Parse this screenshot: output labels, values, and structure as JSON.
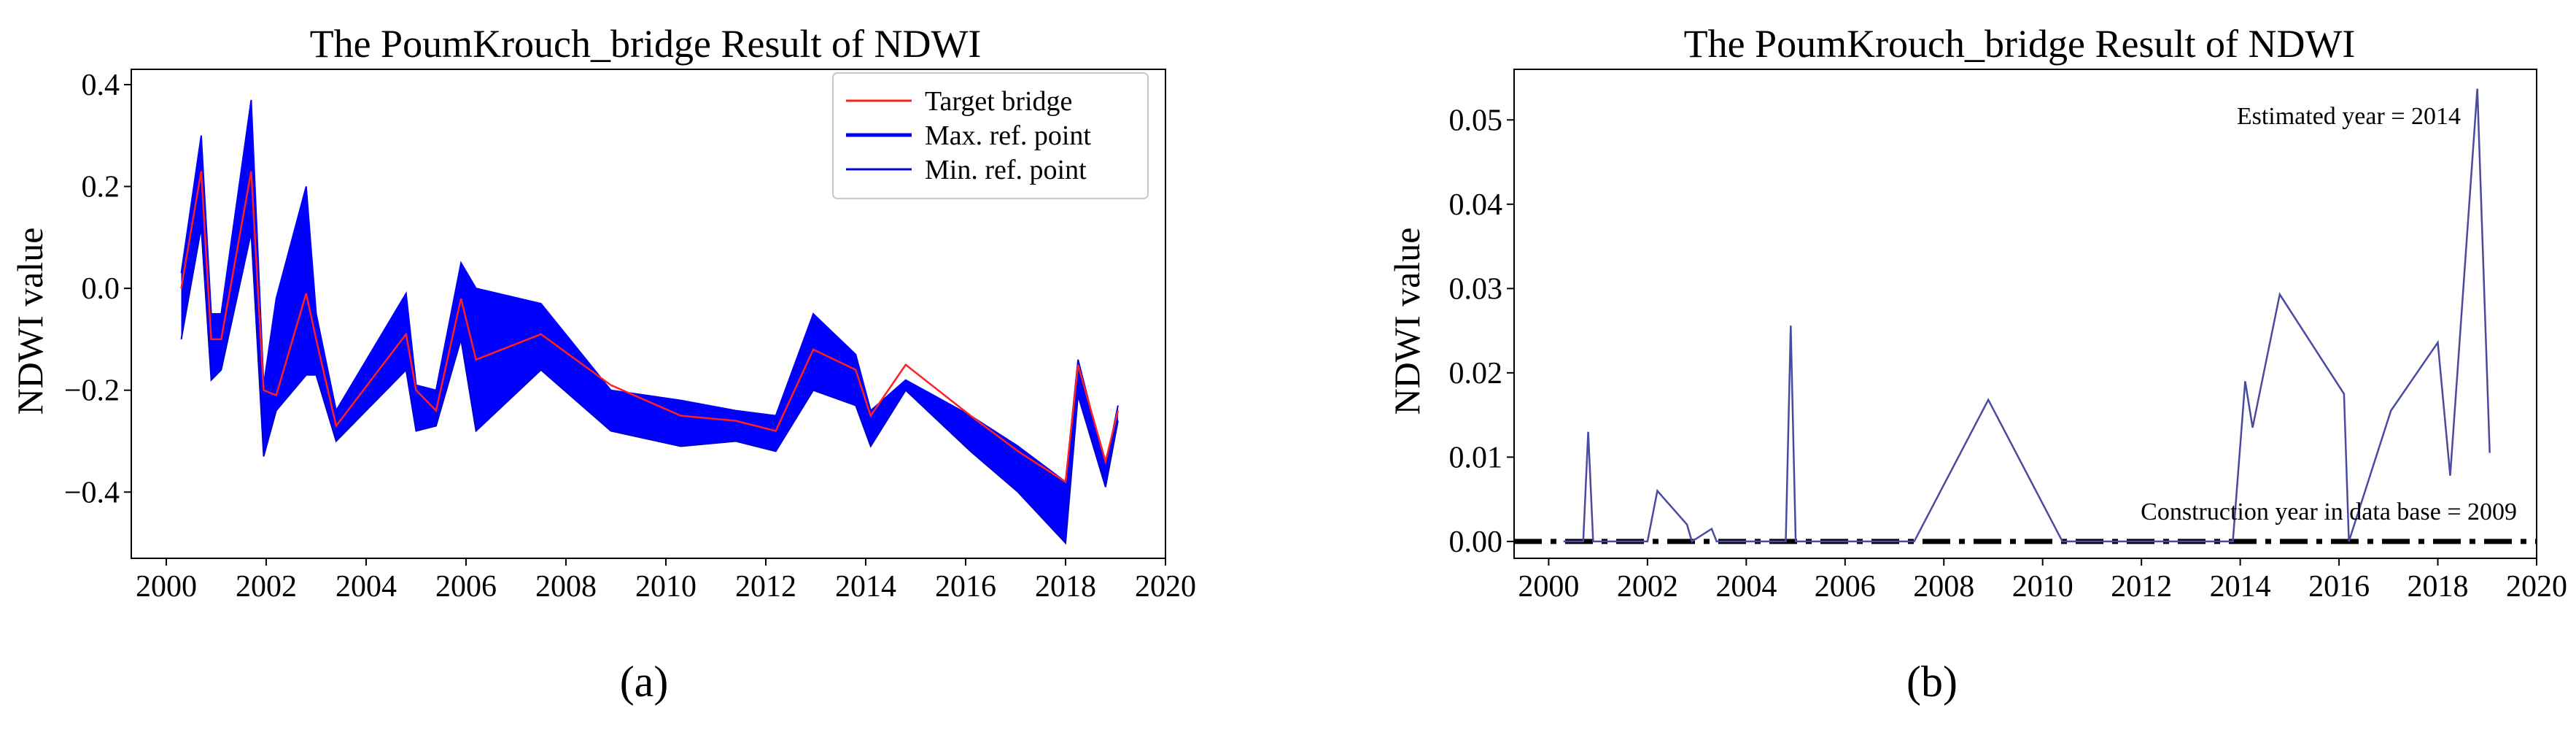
{
  "chart_data": [
    {
      "type": "line",
      "panel_label": "(a)",
      "title": "The PoumKrouch_bridge Result of NDWI",
      "xlabel": "",
      "ylabel": "NDWI value",
      "xlim": [
        1999.3,
        2020
      ],
      "ylim": [
        -0.53,
        0.43
      ],
      "x_ticks": [
        2000,
        2002,
        2004,
        2006,
        2008,
        2010,
        2012,
        2014,
        2016,
        2018,
        2020
      ],
      "y_ticks": [
        0.4,
        0.2,
        0.0,
        -0.2,
        -0.4
      ],
      "y_tick_labels": [
        "0.4",
        "0.2",
        "0.0",
        "−0.2",
        "−0.4"
      ],
      "grid": false,
      "legend_position": "top-right",
      "x": [
        2000.3,
        2000.7,
        2000.9,
        2001.1,
        2001.7,
        2001.95,
        2002.2,
        2002.8,
        2003.0,
        2003.4,
        2004.8,
        2005.0,
        2005.4,
        2005.9,
        2006.2,
        2007.5,
        2008.9,
        2010.3,
        2011.4,
        2012.2,
        2012.95,
        2013.8,
        2014.1,
        2014.8,
        2016.1,
        2017.05,
        2018.0,
        2018.25,
        2018.8,
        2019.05
      ],
      "series": [
        {
          "name": "Target bridge",
          "color": "#ff2020",
          "values": [
            0.0,
            0.23,
            -0.1,
            -0.1,
            0.23,
            -0.2,
            -0.21,
            -0.01,
            -0.1,
            -0.27,
            -0.09,
            -0.2,
            -0.24,
            -0.02,
            -0.14,
            -0.09,
            -0.19,
            -0.25,
            -0.26,
            -0.28,
            -0.12,
            -0.16,
            -0.25,
            -0.15,
            -0.25,
            -0.32,
            -0.38,
            -0.15,
            -0.34,
            -0.24
          ]
        },
        {
          "name": "Max. ref. point",
          "color": "#0000ff",
          "values": [
            0.03,
            0.3,
            -0.05,
            -0.05,
            0.37,
            -0.19,
            -0.02,
            0.2,
            -0.05,
            -0.24,
            -0.01,
            -0.19,
            -0.2,
            0.05,
            0.0,
            -0.03,
            -0.2,
            -0.22,
            -0.24,
            -0.25,
            -0.05,
            -0.13,
            -0.24,
            -0.18,
            -0.25,
            -0.31,
            -0.38,
            -0.14,
            -0.35,
            -0.23
          ]
        },
        {
          "name": "Min. ref. point",
          "color": "#0000cc",
          "values": [
            -0.1,
            0.12,
            -0.18,
            -0.16,
            0.11,
            -0.33,
            -0.24,
            -0.17,
            -0.17,
            -0.3,
            -0.16,
            -0.28,
            -0.27,
            -0.1,
            -0.28,
            -0.16,
            -0.28,
            -0.31,
            -0.3,
            -0.32,
            -0.2,
            -0.23,
            -0.31,
            -0.2,
            -0.32,
            -0.4,
            -0.5,
            -0.21,
            -0.39,
            -0.26
          ]
        }
      ]
    },
    {
      "type": "line",
      "panel_label": "(b)",
      "title": "The PoumKrouch_bridge Result of NDWI",
      "xlabel": "",
      "ylabel": "NDWI value",
      "xlim": [
        1999.3,
        2020
      ],
      "ylim": [
        -0.002,
        0.056
      ],
      "x_ticks": [
        2000,
        2002,
        2004,
        2006,
        2008,
        2010,
        2012,
        2014,
        2016,
        2018,
        2020
      ],
      "y_ticks": [
        0.0,
        0.01,
        0.02,
        0.03,
        0.04,
        0.05
      ],
      "y_tick_labels": [
        "0.00",
        "0.01",
        "0.02",
        "0.03",
        "0.04",
        "0.05"
      ],
      "grid": false,
      "series": [
        {
          "name": "",
          "color": "#4a4aa0",
          "x": [
            2000.3,
            2000.7,
            2000.8,
            2000.9,
            2002.0,
            2002.2,
            2002.8,
            2002.9,
            2003.3,
            2003.4,
            2004.8,
            2004.9,
            2005.0,
            2007.4,
            2008.9,
            2010.4,
            2013.7,
            2013.85,
            2014.1,
            2014.25,
            2014.8,
            2016.1,
            2016.2,
            2017.05,
            2018.0,
            2018.25,
            2018.8,
            2019.05
          ],
          "values": [
            0.0,
            0.0,
            0.013,
            0.0,
            0.0,
            0.006,
            0.002,
            0.0,
            0.0015,
            0.0,
            0.0,
            0.0256,
            0.0,
            0.0,
            0.0168,
            0.0,
            0.0,
            0.0,
            0.019,
            0.0135,
            0.0293,
            0.0175,
            0.0,
            0.0155,
            0.0236,
            0.0078,
            0.0537,
            0.0105
          ]
        }
      ],
      "baseline": {
        "value": 0.0,
        "color": "#000000",
        "style": "dash-dot"
      },
      "annotations": [
        {
          "text": "Estimated year = 2014",
          "position": "top-right"
        },
        {
          "text": "Construction year in data base = 2009",
          "position": "bottom-right"
        }
      ]
    }
  ]
}
